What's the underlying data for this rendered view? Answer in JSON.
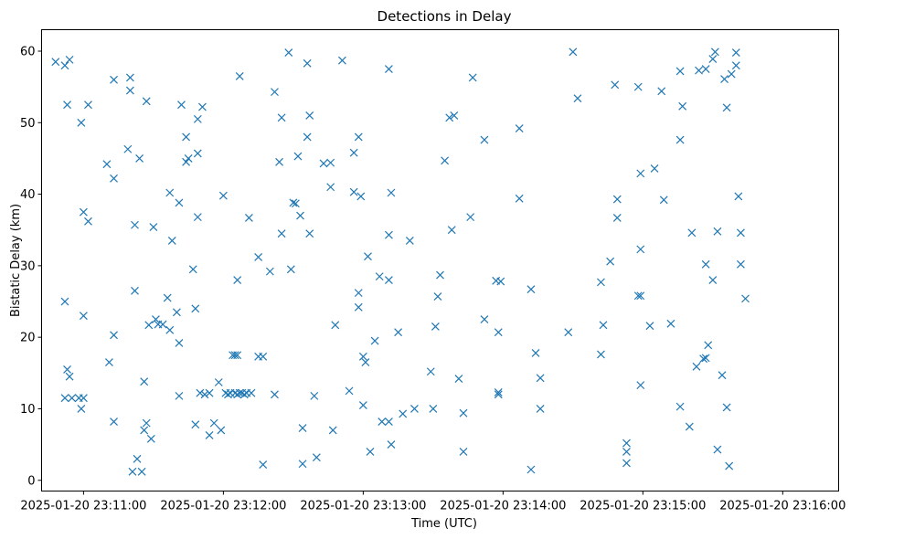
{
  "chart_data": {
    "type": "scatter",
    "title": "Detections in Delay",
    "xlabel": "Time (UTC)",
    "ylabel": "Bistatic Delay (km)",
    "marker": "x",
    "color": "#1f77b4",
    "xlim_seconds": [
      -18,
      324
    ],
    "x_origin": "2025-01-20 23:11:00",
    "ylim": [
      -1.5,
      63
    ],
    "yticks": [
      0,
      10,
      20,
      30,
      40,
      50,
      60
    ],
    "xticks": [
      {
        "t": 0,
        "label": "2025-01-20 23:11:00"
      },
      {
        "t": 60,
        "label": "2025-01-20 23:12:00"
      },
      {
        "t": 120,
        "label": "2025-01-20 23:13:00"
      },
      {
        "t": 180,
        "label": "2025-01-20 23:14:00"
      },
      {
        "t": 240,
        "label": "2025-01-20 23:15:00"
      },
      {
        "t": 300,
        "label": "2025-01-20 23:16:00"
      }
    ],
    "points": [
      [
        -12,
        58.5
      ],
      [
        -8,
        58
      ],
      [
        -6,
        58.8
      ],
      [
        -7,
        52.5
      ],
      [
        -8,
        25
      ],
      [
        -7,
        15.5
      ],
      [
        -6,
        14.5
      ],
      [
        -8,
        11.5
      ],
      [
        -5,
        11.5
      ],
      [
        -2,
        11.5
      ],
      [
        -1,
        10
      ],
      [
        0,
        11.5
      ],
      [
        -1,
        50
      ],
      [
        0,
        37.5
      ],
      [
        0,
        23
      ],
      [
        2,
        52.5
      ],
      [
        2,
        36.2
      ],
      [
        10,
        44.2
      ],
      [
        11,
        16.5
      ],
      [
        13,
        20.3
      ],
      [
        13,
        8.2
      ],
      [
        13,
        56
      ],
      [
        13,
        42.2
      ],
      [
        19,
        46.3
      ],
      [
        20,
        54.5
      ],
      [
        20,
        56.3
      ],
      [
        21,
        1.2
      ],
      [
        22,
        26.5
      ],
      [
        22,
        35.7
      ],
      [
        23,
        3
      ],
      [
        24,
        45
      ],
      [
        25,
        1.2
      ],
      [
        26,
        7
      ],
      [
        26,
        13.8
      ],
      [
        27,
        53
      ],
      [
        27,
        8
      ],
      [
        28,
        21.7
      ],
      [
        30,
        35.4
      ],
      [
        29,
        5.8
      ],
      [
        31,
        22.5
      ],
      [
        32,
        21.8
      ],
      [
        34,
        21.8
      ],
      [
        37,
        21
      ],
      [
        36,
        25.5
      ],
      [
        37,
        40.2
      ],
      [
        38,
        33.5
      ],
      [
        40,
        23.5
      ],
      [
        41,
        38.8
      ],
      [
        42,
        52.5
      ],
      [
        41,
        19.2
      ],
      [
        41,
        11.8
      ],
      [
        44,
        48
      ],
      [
        45,
        45
      ],
      [
        44,
        44.5
      ],
      [
        47,
        29.5
      ],
      [
        48,
        24
      ],
      [
        48,
        7.8
      ],
      [
        49,
        36.8
      ],
      [
        49,
        50.5
      ],
      [
        49,
        45.7
      ],
      [
        51,
        52.2
      ],
      [
        50,
        12.2
      ],
      [
        52,
        12
      ],
      [
        54,
        6.3
      ],
      [
        54,
        12.2
      ],
      [
        56,
        8
      ],
      [
        58,
        13.7
      ],
      [
        59,
        7
      ],
      [
        60,
        39.8
      ],
      [
        61,
        12.2
      ],
      [
        62,
        12
      ],
      [
        63,
        12.2
      ],
      [
        64,
        17.5
      ],
      [
        65,
        17.5
      ],
      [
        65,
        12.2
      ],
      [
        66,
        17.5
      ],
      [
        66,
        12
      ],
      [
        67,
        56.5
      ],
      [
        66,
        28
      ],
      [
        67,
        12.2
      ],
      [
        68,
        12.2
      ],
      [
        69,
        12
      ],
      [
        70,
        12.2
      ],
      [
        71,
        36.7
      ],
      [
        72,
        12.2
      ],
      [
        75,
        31.2
      ],
      [
        75,
        17.3
      ],
      [
        77,
        17.3
      ],
      [
        77,
        2.2
      ],
      [
        80,
        29.2
      ],
      [
        82,
        54.3
      ],
      [
        82,
        12
      ],
      [
        84,
        44.5
      ],
      [
        85,
        34.5
      ],
      [
        85,
        50.7
      ],
      [
        88,
        59.8
      ],
      [
        90,
        38.8
      ],
      [
        89,
        29.5
      ],
      [
        91,
        38.7
      ],
      [
        92,
        45.3
      ],
      [
        93,
        37
      ],
      [
        94,
        7.3
      ],
      [
        94,
        2.3
      ],
      [
        96,
        58.3
      ],
      [
        96,
        48
      ],
      [
        97,
        51
      ],
      [
        97,
        34.5
      ],
      [
        99,
        11.8
      ],
      [
        100,
        3.2
      ],
      [
        103,
        44.3
      ],
      [
        106,
        44.4
      ],
      [
        106,
        41
      ],
      [
        107,
        7
      ],
      [
        108,
        21.7
      ],
      [
        111,
        58.7
      ],
      [
        114,
        12.5
      ],
      [
        116,
        45.8
      ],
      [
        116,
        40.3
      ],
      [
        118,
        48
      ],
      [
        118,
        26.2
      ],
      [
        118,
        24.2
      ],
      [
        119,
        39.7
      ],
      [
        120,
        10.5
      ],
      [
        120,
        17.3
      ],
      [
        121,
        16.5
      ],
      [
        122,
        31.3
      ],
      [
        123,
        4
      ],
      [
        125,
        19.5
      ],
      [
        127,
        28.5
      ],
      [
        128,
        8.2
      ],
      [
        131,
        28
      ],
      [
        131,
        34.3
      ],
      [
        131,
        8.2
      ],
      [
        131,
        57.5
      ],
      [
        132,
        40.2
      ],
      [
        132,
        5
      ],
      [
        135,
        20.7
      ],
      [
        137,
        9.3
      ],
      [
        140,
        33.5
      ],
      [
        142,
        10
      ],
      [
        149,
        15.2
      ],
      [
        150,
        10
      ],
      [
        151,
        21.5
      ],
      [
        152,
        25.7
      ],
      [
        153,
        28.7
      ],
      [
        155,
        44.7
      ],
      [
        157,
        50.7
      ],
      [
        158,
        35
      ],
      [
        159,
        51
      ],
      [
        161,
        14.2
      ],
      [
        163,
        9.4
      ],
      [
        163,
        4
      ],
      [
        166,
        36.8
      ],
      [
        167,
        56.3
      ],
      [
        172,
        47.6
      ],
      [
        172,
        22.5
      ],
      [
        177,
        27.9
      ],
      [
        178,
        12.3
      ],
      [
        178,
        12
      ],
      [
        179,
        27.8
      ],
      [
        178,
        20.7
      ],
      [
        187,
        49.2
      ],
      [
        187,
        39.4
      ],
      [
        192,
        1.5
      ],
      [
        192,
        26.7
      ],
      [
        194,
        17.8
      ],
      [
        196,
        10
      ],
      [
        196,
        14.3
      ],
      [
        208,
        20.7
      ],
      [
        210,
        59.9
      ],
      [
        212,
        53.4
      ],
      [
        222,
        27.7
      ],
      [
        222,
        17.6
      ],
      [
        223,
        21.7
      ],
      [
        226,
        30.6
      ],
      [
        228,
        55.3
      ],
      [
        229,
        39.3
      ],
      [
        229,
        36.7
      ],
      [
        233,
        5.2
      ],
      [
        233,
        4
      ],
      [
        233,
        2.4
      ],
      [
        238,
        55
      ],
      [
        238,
        25.8
      ],
      [
        239,
        25.8
      ],
      [
        239,
        42.9
      ],
      [
        239,
        32.3
      ],
      [
        239,
        13.3
      ],
      [
        243,
        21.6
      ],
      [
        245,
        43.6
      ],
      [
        248,
        54.4
      ],
      [
        249,
        39.2
      ],
      [
        252,
        21.9
      ],
      [
        256,
        57.2
      ],
      [
        256,
        47.6
      ],
      [
        257,
        52.3
      ],
      [
        256,
        10.3
      ],
      [
        260,
        7.5
      ],
      [
        261,
        34.6
      ],
      [
        263,
        15.9
      ],
      [
        264,
        57.3
      ],
      [
        266,
        17
      ],
      [
        267,
        17.1
      ],
      [
        267,
        57.5
      ],
      [
        267,
        30.2
      ],
      [
        268,
        18.9
      ],
      [
        270,
        58.9
      ],
      [
        270,
        28
      ],
      [
        271,
        59.9
      ],
      [
        272,
        34.8
      ],
      [
        272,
        4.3
      ],
      [
        274,
        14.7
      ],
      [
        275,
        56.1
      ],
      [
        276,
        52.1
      ],
      [
        276,
        10.2
      ],
      [
        277,
        2
      ],
      [
        278,
        56.8
      ],
      [
        280,
        58
      ],
      [
        280,
        59.8
      ],
      [
        281,
        39.7
      ],
      [
        282,
        34.6
      ],
      [
        282,
        30.2
      ],
      [
        284,
        25.4
      ]
    ]
  }
}
